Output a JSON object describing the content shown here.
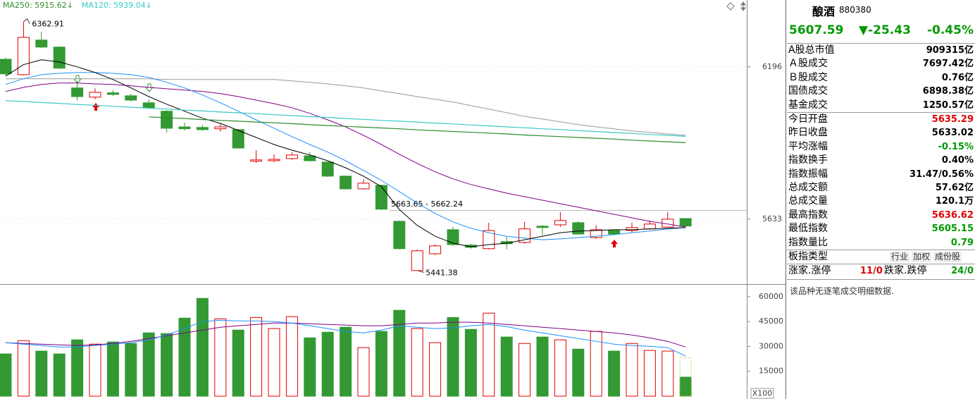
{
  "chart_data": {
    "type": "candlestick",
    "up_color": "#e00000",
    "down_color": "#339933",
    "open": [
      6224,
      6167,
      6295,
      6269,
      6118,
      6084,
      6100,
      6089,
      6063,
      6032,
      5974,
      5972,
      5967,
      5964,
      5847,
      5849,
      5857,
      5867,
      5844,
      5792,
      5745,
      5758,
      5625,
      5443,
      5505,
      5594,
      5537,
      5524,
      5550,
      5547,
      5607,
      5612,
      5620,
      5565,
      5591,
      5591,
      5597,
      5604,
      5635.29
    ],
    "high": [
      6230,
      6362.91,
      6326,
      6272,
      6144,
      6116,
      6110,
      6097,
      6076,
      6035,
      5990,
      5982,
      5985,
      5967,
      5888,
      5873,
      5880,
      5881,
      5846,
      5794,
      5781,
      5760,
      5628,
      5521,
      5539,
      5604,
      5542,
      5620,
      5568,
      5623,
      5612,
      5659,
      5625,
      5610,
      5594,
      5620,
      5628,
      5659,
      5636.62
    ],
    "low": [
      6165,
      6165,
      6266,
      6188,
      6071,
      6076,
      6088,
      6068,
      6040,
      5953,
      5961,
      5959,
      5956,
      5894,
      5841,
      5843,
      5852,
      5846,
      5789,
      5742,
      5742,
      5667,
      5521,
      5441.38,
      5500,
      5534,
      5524,
      5521,
      5521,
      5542,
      5573,
      5604,
      5576,
      5560,
      5573,
      5583,
      5594,
      5602,
      5605.15
    ],
    "close": [
      6170,
      6305,
      6269,
      6191,
      6086,
      6102,
      6094,
      6073,
      6045,
      5969,
      5967,
      5964,
      5974,
      5896,
      5852,
      5854,
      5870,
      5849,
      5792,
      5745,
      5766,
      5670,
      5524,
      5516,
      5534,
      5539,
      5529,
      5591,
      5542,
      5597,
      5602,
      5628,
      5578,
      5594,
      5578,
      5602,
      5615,
      5633,
      5607.59
    ],
    "ylim": [
      5393,
      6443
    ],
    "yticks": [
      6196,
      5633
    ],
    "grid": true,
    "series": [
      {
        "name": "MA250: 5915.62↓",
        "color": "#2e8b2e",
        "values": [
          null,
          null,
          null,
          null,
          null,
          null,
          null,
          null,
          6011,
          6008,
          6005,
          6001,
          5998,
          5995,
          5992,
          5989,
          5986,
          5982,
          5979,
          5976,
          5973,
          5970,
          5967,
          5963,
          5960,
          5957,
          5954,
          5951,
          5948,
          5944,
          5941,
          5938,
          5935,
          5932,
          5929,
          5925,
          5922,
          5919,
          5915.62
        ]
      },
      {
        "name": "MA120: 5939.04↓",
        "color": "#3cc8c8",
        "values": [
          6071,
          6068,
          6064,
          6061,
          6057,
          6054,
          6050,
          6047,
          6043,
          6040,
          6036,
          6033,
          6029,
          6026,
          6023,
          6019,
          6016,
          6012,
          6009,
          6005,
          6002,
          5998,
          5995,
          5992,
          5988,
          5985,
          5981,
          5978,
          5974,
          5971,
          5967,
          5964,
          5960,
          5957,
          5953,
          5950,
          5946,
          5943,
          5939.04
        ]
      }
    ],
    "lines": [
      {
        "color": "#999999",
        "values": [
          6152,
          6152,
          6152,
          6152,
          6152,
          6152,
          6152,
          6152,
          6152,
          6149,
          6149,
          6149,
          6149,
          6149,
          6149,
          6149,
          6144,
          6139,
          6133,
          6126,
          6118,
          6107,
          6097,
          6086,
          6076,
          6066,
          6053,
          6040,
          6027,
          6013,
          6003,
          5993,
          5982,
          5974,
          5967,
          5959,
          5954,
          5948,
          5943
        ]
      },
      {
        "color": "#800080",
        "values": [
          6105,
          6120,
          6131,
          6136,
          6136,
          6133,
          6131,
          6126,
          6120,
          6115,
          6110,
          6105,
          6097,
          6086,
          6073,
          6060,
          6045,
          6024,
          6000,
          5974,
          5943,
          5909,
          5873,
          5839,
          5808,
          5782,
          5761,
          5745,
          5729,
          5716,
          5703,
          5690,
          5677,
          5664,
          5651,
          5638,
          5625,
          5615,
          5604
        ]
      },
      {
        "color": "#1e90ff",
        "values": [
          6131,
          6152,
          6167,
          6172,
          6175,
          6175,
          6172,
          6167,
          6157,
          6139,
          6118,
          6092,
          6063,
          6032,
          6000,
          5969,
          5938,
          5909,
          5881,
          5849,
          5813,
          5776,
          5735,
          5693,
          5654,
          5623,
          5599,
          5583,
          5570,
          5563,
          5557,
          5560,
          5565,
          5570,
          5576,
          5583,
          5589,
          5597,
          5602
        ]
      },
      {
        "color": "#000000",
        "values": [
          6162,
          6204,
          6222,
          6214,
          6196,
          6175,
          6149,
          6118,
          6086,
          6058,
          6032,
          6006,
          5987,
          5961,
          5935,
          5909,
          5888,
          5870,
          5849,
          5823,
          5792,
          5753,
          5669,
          5610,
          5570,
          5544,
          5531,
          5539,
          5544,
          5557,
          5570,
          5583,
          5589,
          5591,
          5594,
          5594,
          5597,
          5599,
          5602
        ]
      }
    ],
    "range_label": "5663.65 - 5662.24",
    "volume": {
      "values": [
        25500,
        33500,
        27200,
        25500,
        34000,
        31400,
        32700,
        31800,
        38200,
        37800,
        47100,
        59000,
        46700,
        39900,
        47500,
        40800,
        48000,
        35200,
        38600,
        41600,
        29300,
        39100,
        51800,
        40800,
        32300,
        47500,
        40300,
        50100,
        35700,
        31800,
        35700,
        34000,
        28400,
        39100,
        27200,
        31800,
        27600,
        27200,
        11500
      ],
      "projected": 23300,
      "projected_color": "#d8c84a",
      "ylim": [
        0,
        67200
      ],
      "yticks": [
        60000,
        45000,
        30000,
        15000
      ],
      "unit": "X100",
      "lines": [
        {
          "color": "#800080",
          "values": [
            32300,
            31800,
            31400,
            31000,
            30600,
            31000,
            31800,
            33100,
            34800,
            36500,
            38200,
            39900,
            41600,
            42500,
            43300,
            44100,
            44100,
            43700,
            43300,
            42900,
            42500,
            42500,
            43300,
            44100,
            44100,
            44600,
            44600,
            44100,
            43300,
            42500,
            41600,
            40800,
            39900,
            39100,
            38200,
            36900,
            35200,
            33100,
            29700
          ]
        },
        {
          "color": "#1e90ff",
          "values": [
            32300,
            31400,
            30600,
            29700,
            29700,
            30600,
            31400,
            32300,
            34000,
            36900,
            40800,
            45000,
            45800,
            45400,
            45400,
            45000,
            44100,
            42500,
            40800,
            39100,
            38200,
            39900,
            42500,
            41600,
            40800,
            41200,
            42500,
            43300,
            42000,
            39900,
            38200,
            36500,
            34800,
            33100,
            31400,
            30600,
            30100,
            29300,
            24200
          ]
        }
      ]
    }
  },
  "sidebar": {
    "name": "酿酒",
    "code": "880380",
    "price": "5607.59",
    "change": "▼-25.43",
    "change_pct": "-0.45%",
    "price_color": "#009900",
    "rows": [
      [
        {
          "label": "A股总市值",
          "value": "909315亿"
        },
        {
          "label": "Ａ股成交",
          "value": "7697.42亿"
        },
        {
          "label": "Ｂ股成交",
          "value": "0.76亿"
        },
        {
          "label": "国债成交",
          "value": "6898.38亿"
        },
        {
          "label": "基金成交",
          "value": "1250.57亿"
        }
      ],
      [
        {
          "label": "今日开盘",
          "value": "5635.29",
          "color": "#e00000"
        },
        {
          "label": "昨日收盘",
          "value": "5633.02"
        },
        {
          "label": "平均涨幅",
          "value": "-0.15%",
          "color": "#009900"
        },
        {
          "label": "指数换手",
          "value": "0.40%"
        },
        {
          "label": "指数振幅",
          "value": "31.47/0.56%"
        },
        {
          "label": "总成交额",
          "value": "57.62亿"
        },
        {
          "label": "总成交量",
          "value": "120.1万"
        },
        {
          "label": "最高指数",
          "value": "5636.62",
          "color": "#e00000"
        },
        {
          "label": "最低指数",
          "value": "5605.15",
          "color": "#009900"
        },
        {
          "label": "指数量比",
          "value": "0.79",
          "color": "#009900"
        }
      ]
    ],
    "type_row": {
      "label": "板指类型",
      "options": [
        "行业",
        "加权",
        "成份股"
      ]
    },
    "limit_row": {
      "up_label": "涨家.涨停",
      "up_value": "11/0",
      "down_label": "跌家.跌停",
      "down_value": "24/0"
    },
    "note": "该品种无逐笔成交明细数据."
  }
}
